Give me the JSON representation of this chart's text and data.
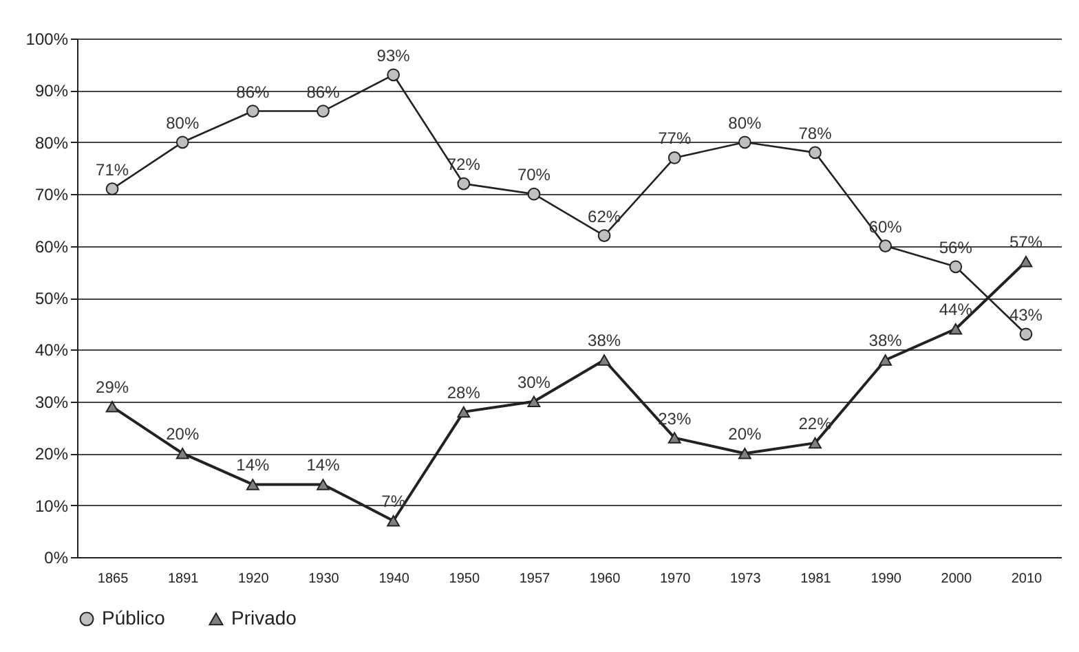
{
  "chart_data": {
    "type": "line",
    "categories": [
      "1865",
      "1891",
      "1920",
      "1930",
      "1940",
      "1950",
      "1957",
      "1960",
      "1970",
      "1973",
      "1981",
      "1990",
      "2000",
      "2010"
    ],
    "series": [
      {
        "name": "Público",
        "color": "#bfbfbf",
        "marker": "circle",
        "values": [
          71,
          80,
          86,
          86,
          93,
          72,
          70,
          62,
          77,
          80,
          78,
          60,
          56,
          43
        ],
        "value_labels": [
          "71%",
          "80%",
          "86%",
          "86%",
          "93%",
          "72%",
          "70%",
          "62%",
          "77%",
          "80%",
          "78%",
          "60%",
          "56%",
          "43%"
        ]
      },
      {
        "name": "Privado",
        "color": "#808080",
        "marker": "triangle",
        "values": [
          29,
          20,
          14,
          14,
          7,
          28,
          30,
          38,
          23,
          20,
          22,
          38,
          44,
          57
        ],
        "value_labels": [
          "29%",
          "20%",
          "14%",
          "14%",
          "7%",
          "28%",
          "30%",
          "38%",
          "23%",
          "20%",
          "22%",
          "38%",
          "44%",
          "57%"
        ]
      }
    ],
    "ylim": [
      0,
      100
    ],
    "yticks": [
      {
        "value": 0,
        "label": "0%"
      },
      {
        "value": 10,
        "label": "10%"
      },
      {
        "value": 20,
        "label": "20%"
      },
      {
        "value": 30,
        "label": "30%"
      },
      {
        "value": 40,
        "label": "40%"
      },
      {
        "value": 50,
        "label": "50%"
      },
      {
        "value": 60,
        "label": "60%"
      },
      {
        "value": 70,
        "label": "70%"
      },
      {
        "value": 80,
        "label": "80%"
      },
      {
        "value": 90,
        "label": "90%"
      },
      {
        "value": 100,
        "label": "100%"
      }
    ],
    "grid": "y",
    "legend": "bottom"
  }
}
